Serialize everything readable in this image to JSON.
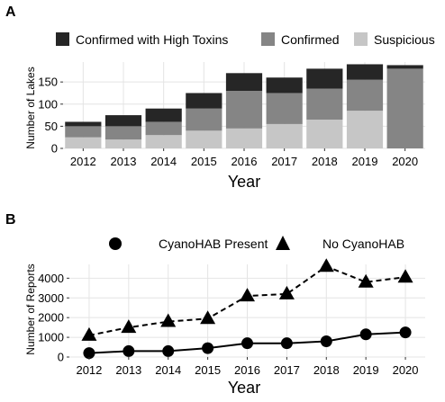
{
  "panels": {
    "a": "A",
    "b": "B"
  },
  "chart_data": [
    {
      "type": "bar",
      "stacked": true,
      "title": "",
      "xlabel": "Year",
      "ylabel": "Number of Lakes",
      "categories": [
        "2012",
        "2013",
        "2014",
        "2015",
        "2016",
        "2017",
        "2018",
        "2019",
        "2020"
      ],
      "ylim": [
        0,
        195
      ],
      "yticks": [
        0,
        50,
        100,
        150
      ],
      "grid": true,
      "legend_position": "top",
      "series": [
        {
          "name": "Suspicious",
          "color": "#c6c6c6",
          "values": [
            25,
            20,
            30,
            40,
            45,
            55,
            65,
            85,
            0
          ]
        },
        {
          "name": "Confirmed",
          "color": "#858585",
          "values": [
            25,
            30,
            30,
            50,
            85,
            70,
            70,
            70,
            180
          ]
        },
        {
          "name": "Confirmed with High Toxins",
          "color": "#262626",
          "values": [
            10,
            25,
            30,
            35,
            40,
            35,
            45,
            35,
            8
          ]
        }
      ],
      "legend_order": [
        "Confirmed with High Toxins",
        "Confirmed",
        "Suspicious"
      ]
    },
    {
      "type": "line",
      "title": "",
      "xlabel": "Year",
      "ylabel": "Number of Reports",
      "x": [
        "2012",
        "2013",
        "2014",
        "2015",
        "2016",
        "2017",
        "2018",
        "2019",
        "2020"
      ],
      "ylim": [
        0,
        4700
      ],
      "yticks": [
        0,
        1000,
        2000,
        3000,
        4000
      ],
      "grid": true,
      "legend_position": "top",
      "series": [
        {
          "name": "CyanoHAB Present",
          "marker": "circle",
          "line": "solid",
          "values": [
            200,
            300,
            300,
            450,
            700,
            700,
            800,
            1150,
            1250
          ]
        },
        {
          "name": "No CyanoHAB",
          "marker": "triangle",
          "line": "dashed",
          "values": [
            1100,
            1500,
            1800,
            1950,
            3100,
            3200,
            4600,
            3800,
            4050
          ]
        }
      ]
    }
  ]
}
